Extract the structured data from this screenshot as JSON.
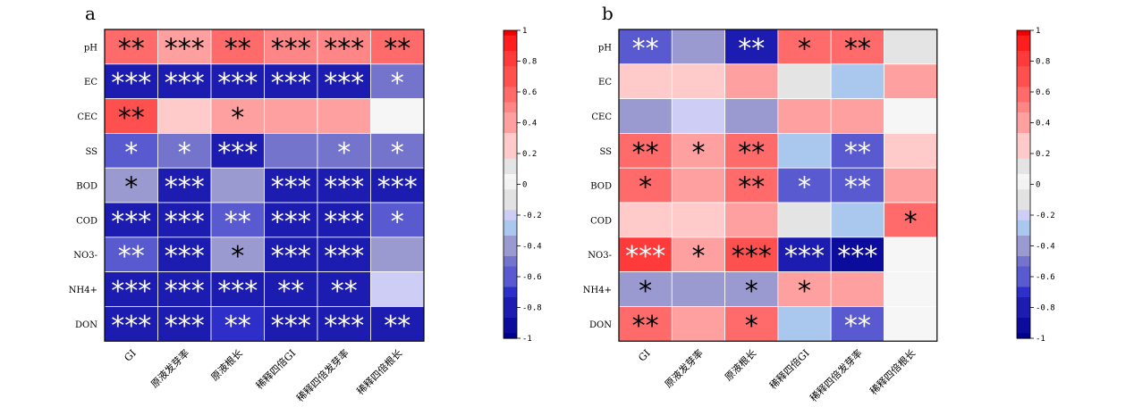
{
  "chart_data": [
    {
      "type": "heatmap",
      "panel_label": "a",
      "rows": [
        "pH",
        "EC",
        "CEC",
        "SS",
        "BOD",
        "COD",
        "NO3-",
        "NH4+",
        "DON"
      ],
      "columns": [
        "GI",
        "原液发芽率",
        "原液根长",
        "稀释四倍GI",
        "稀释四倍发芽率",
        "稀释四倍根长"
      ],
      "values": [
        [
          0.55,
          0.45,
          0.55,
          0.5,
          0.5,
          0.55
        ],
        [
          -0.75,
          -0.85,
          -0.75,
          -0.75,
          -0.75,
          -0.45
        ],
        [
          0.65,
          0.25,
          0.45,
          0.45,
          0.45,
          0.05
        ],
        [
          -0.6,
          -0.45,
          -0.75,
          -0.45,
          -0.45,
          -0.45
        ],
        [
          -0.4,
          -0.75,
          -0.4,
          -0.85,
          -0.85,
          -0.75
        ],
        [
          -0.75,
          -0.75,
          -0.6,
          -0.8,
          -0.75,
          -0.6
        ],
        [
          -0.55,
          -0.8,
          -0.4,
          -0.8,
          -0.75,
          -0.4
        ],
        [
          -0.85,
          -0.75,
          -0.75,
          -0.75,
          -0.75,
          -0.2
        ],
        [
          -0.75,
          -0.85,
          -0.7,
          -0.85,
          -0.85,
          -0.75
        ]
      ],
      "significance": [
        [
          "**",
          "***",
          "**",
          "***",
          "***",
          "**"
        ],
        [
          "***",
          "***",
          "***",
          "***",
          "***",
          "*"
        ],
        [
          "**",
          "",
          "*",
          "",
          "",
          ""
        ],
        [
          "*",
          "*",
          "***",
          "",
          "*",
          "*"
        ],
        [
          "*",
          "***",
          "",
          "***",
          "***",
          "***"
        ],
        [
          "***",
          "***",
          "**",
          "***",
          "***",
          "*"
        ],
        [
          "**",
          "***",
          "*",
          "***",
          "***",
          ""
        ],
        [
          "***",
          "***",
          "***",
          "**",
          "**",
          ""
        ],
        [
          "***",
          "***",
          "**",
          "***",
          "***",
          "**"
        ]
      ],
      "colorbar": {
        "range": [
          -1,
          1
        ],
        "ticks": [
          "1",
          "0.8",
          "0.6",
          "0.4",
          "0.2",
          "0",
          "-0.2",
          "-0.4",
          "-0.6",
          "-0.8",
          "-1"
        ]
      }
    },
    {
      "type": "heatmap",
      "panel_label": "b",
      "rows": [
        "pH",
        "EC",
        "CEC",
        "SS",
        "BOD",
        "COD",
        "NO3-",
        "NH4+",
        "DON"
      ],
      "columns": [
        "GI",
        "原液发芽率",
        "原液根长",
        "稀释四倍GI",
        "稀释四倍发芽率",
        "稀释四倍根长"
      ],
      "values": [
        [
          -0.55,
          -0.4,
          -0.75,
          0.55,
          0.6,
          0.1
        ],
        [
          0.25,
          0.25,
          0.4,
          0.1,
          -0.3,
          0.4
        ],
        [
          -0.4,
          -0.2,
          -0.4,
          0.4,
          0.4,
          0.05
        ],
        [
          0.6,
          0.45,
          0.6,
          -0.3,
          -0.55,
          0.25
        ],
        [
          0.55,
          0.4,
          0.6,
          -0.55,
          -0.55,
          0.4
        ],
        [
          0.25,
          0.25,
          0.4,
          0.1,
          -0.3,
          0.55
        ],
        [
          0.85,
          0.45,
          0.75,
          -0.8,
          -0.95,
          0.05
        ],
        [
          -0.4,
          -0.4,
          -0.4,
          0.45,
          0.4,
          0.03
        ],
        [
          0.55,
          0.4,
          0.55,
          -0.3,
          -0.55,
          0.07
        ]
      ],
      "significance": [
        [
          "**",
          "",
          "**",
          "*",
          "**",
          ""
        ],
        [
          "",
          "",
          "",
          "",
          "",
          ""
        ],
        [
          "",
          "",
          "",
          "",
          "",
          ""
        ],
        [
          "**",
          "*",
          "**",
          "",
          "**",
          ""
        ],
        [
          "*",
          "",
          "**",
          "*",
          "**",
          ""
        ],
        [
          "",
          "",
          "",
          "",
          "",
          "*"
        ],
        [
          "***",
          "*",
          "***",
          "***",
          "***",
          ""
        ],
        [
          "*",
          "",
          "*",
          "*",
          "",
          ""
        ],
        [
          "**",
          "",
          "*",
          "",
          "**",
          ""
        ]
      ],
      "colorbar": {
        "range": [
          -1,
          1
        ],
        "ticks": [
          "1",
          "0.8",
          "0.6",
          "0.4",
          "0.2",
          "0",
          "-0.2",
          "-0.4",
          "-0.6",
          "-0.8",
          "-1"
        ]
      }
    }
  ],
  "colors": {
    "palette_negative_to_positive": [
      "#00008b",
      "#1c1cb0",
      "#2e2ec8",
      "#5a5ad0",
      "#8e8ed0",
      "#a8c8ec",
      "#cdcdf6",
      "#e2e2e2",
      "#f0f0f0",
      "#ffffff",
      "#ffd0d0",
      "#ffa8a8",
      "#ff8484",
      "#ff5e5e",
      "#ff3838",
      "#f01010"
    ],
    "border": "#000000",
    "grid": "#ffffff"
  }
}
